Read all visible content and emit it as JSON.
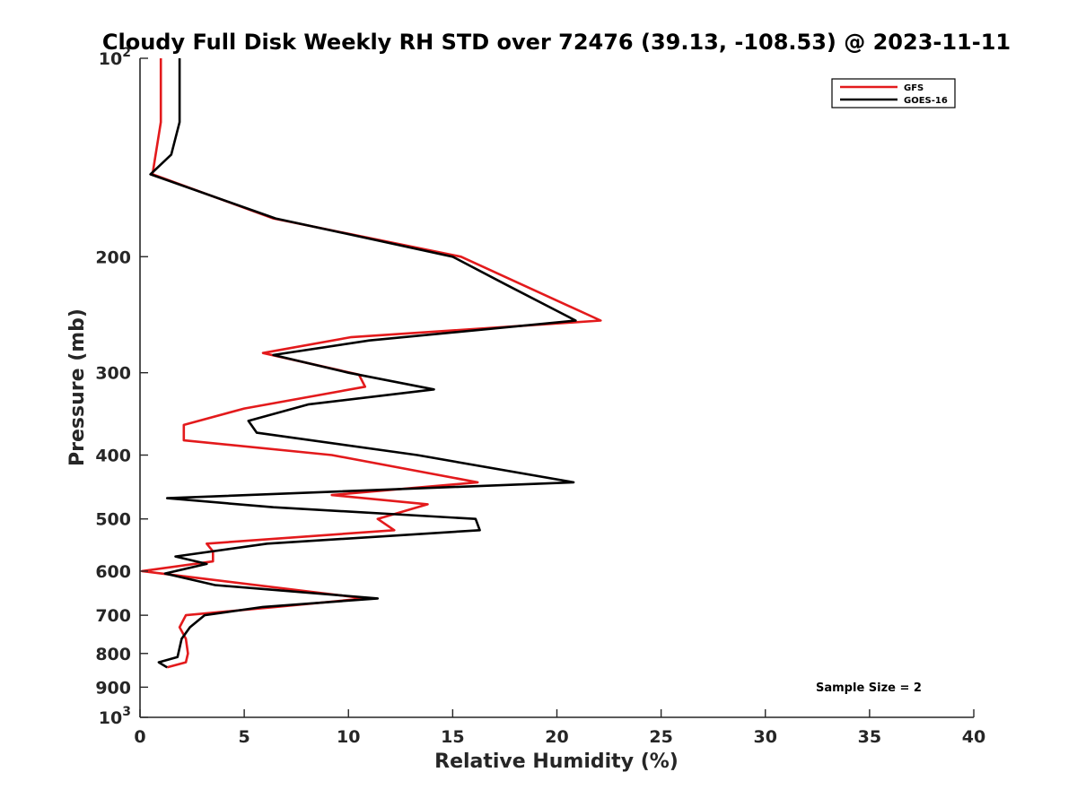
{
  "chart_data": {
    "type": "line",
    "title": "Cloudy Full Disk Weekly RH STD over 72476 (39.13, -108.53) @ 2023-11-11",
    "xlabel": "Relative Humidity (%)",
    "ylabel": "Pressure (mb)",
    "xlim": [
      0,
      40
    ],
    "ylim": [
      100,
      1000
    ],
    "y_scale": "log",
    "y_reversed": true,
    "grid": false,
    "legend_position": "top-right",
    "x_ticks": [
      "0",
      "5",
      "10",
      "15",
      "20",
      "25",
      "30",
      "35",
      "40"
    ],
    "y_ticks": [
      {
        "value": 100,
        "base": "10",
        "exp": "2"
      },
      {
        "value": 200,
        "label": "200"
      },
      {
        "value": 300,
        "label": "300"
      },
      {
        "value": 400,
        "label": "400"
      },
      {
        "value": 500,
        "label": "500"
      },
      {
        "value": 600,
        "label": "600"
      },
      {
        "value": 700,
        "label": "700"
      },
      {
        "value": 800,
        "label": "800"
      },
      {
        "value": 900,
        "label": "900"
      },
      {
        "value": 1000,
        "base": "10",
        "exp": "3"
      }
    ],
    "annotation": "Sample Size = 2",
    "series": [
      {
        "name": "GFS",
        "color": "#e31a1c",
        "points": [
          [
            1.0,
            100
          ],
          [
            1.0,
            125
          ],
          [
            0.6,
            150
          ],
          [
            6.4,
            175
          ],
          [
            15.4,
            200
          ],
          [
            22.1,
            250
          ],
          [
            10.1,
            265
          ],
          [
            5.9,
            280
          ],
          [
            10.5,
            302
          ],
          [
            10.8,
            315
          ],
          [
            5.0,
            340
          ],
          [
            2.1,
            360
          ],
          [
            2.1,
            380
          ],
          [
            9.2,
            400
          ],
          [
            16.2,
            440
          ],
          [
            9.2,
            460
          ],
          [
            13.8,
            475
          ],
          [
            11.4,
            500
          ],
          [
            12.2,
            520
          ],
          [
            3.2,
            545
          ],
          [
            3.5,
            560
          ],
          [
            3.5,
            580
          ],
          [
            0.1,
            600
          ],
          [
            10.8,
            660
          ],
          [
            6.5,
            680
          ],
          [
            2.2,
            700
          ],
          [
            1.9,
            730
          ],
          [
            2.2,
            760
          ],
          [
            2.3,
            800
          ],
          [
            2.2,
            825
          ],
          [
            1.3,
            840
          ]
        ]
      },
      {
        "name": "GOES-16",
        "color": "#000000",
        "points": [
          [
            1.9,
            100
          ],
          [
            1.9,
            125
          ],
          [
            1.5,
            140
          ],
          [
            0.5,
            150
          ],
          [
            6.5,
            175
          ],
          [
            15.0,
            200
          ],
          [
            17.5,
            220
          ],
          [
            20.9,
            250
          ],
          [
            11.0,
            268
          ],
          [
            6.4,
            282
          ],
          [
            10.0,
            300
          ],
          [
            14.1,
            318
          ],
          [
            8.1,
            335
          ],
          [
            5.2,
            355
          ],
          [
            5.6,
            370
          ],
          [
            13.3,
            400
          ],
          [
            20.8,
            440
          ],
          [
            1.3,
            465
          ],
          [
            6.4,
            480
          ],
          [
            16.1,
            500
          ],
          [
            16.3,
            520
          ],
          [
            6.1,
            545
          ],
          [
            1.7,
            570
          ],
          [
            3.2,
            585
          ],
          [
            1.2,
            605
          ],
          [
            3.6,
            630
          ],
          [
            11.4,
            660
          ],
          [
            5.9,
            680
          ],
          [
            3.1,
            700
          ],
          [
            2.4,
            730
          ],
          [
            2.0,
            760
          ],
          [
            1.8,
            810
          ],
          [
            0.9,
            825
          ],
          [
            1.3,
            840
          ]
        ]
      }
    ]
  }
}
